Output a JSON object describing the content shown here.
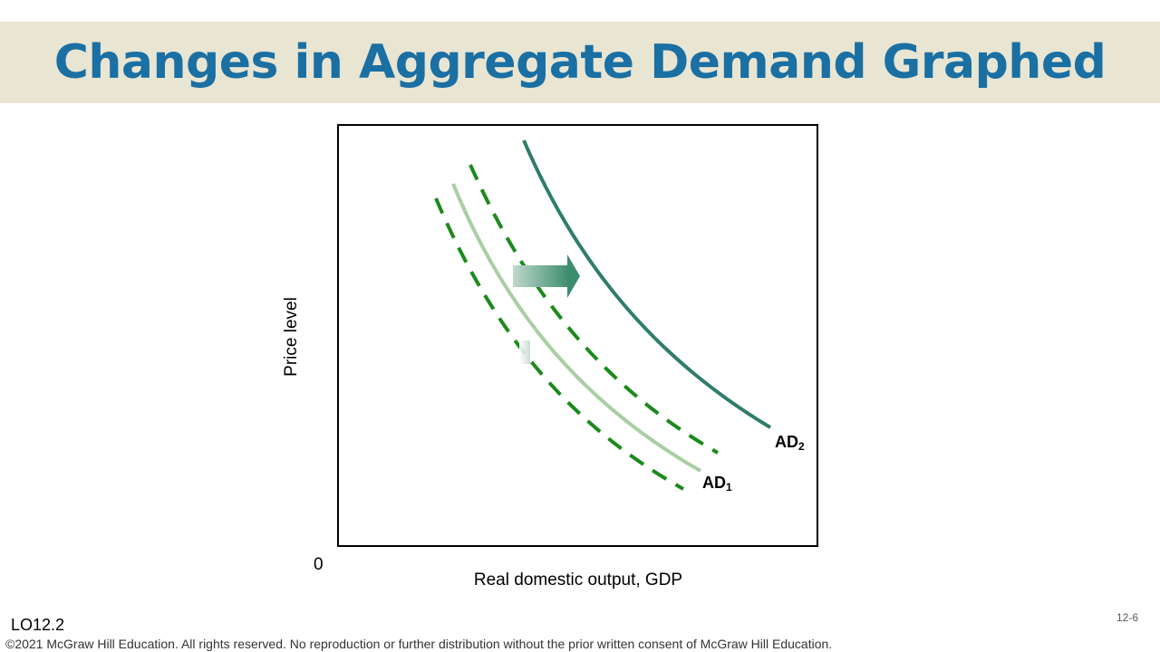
{
  "slide": {
    "title": "Changes in Aggregate Demand Graphed",
    "lo_code": "LO12.2",
    "slide_number": "12-6",
    "copyright": "©2021 McGraw Hill Education. All rights reserved. No reproduction or further distribution without the prior written consent of McGraw Hill Education."
  },
  "graph": {
    "y_axis_label": "Price level",
    "x_axis_label": "Real domestic output, GDP",
    "origin_label": "0",
    "curves": [
      {
        "name": "AD",
        "subscript": "1",
        "color": "#a8cfa2",
        "style": "solid"
      },
      {
        "name": "AD",
        "subscript": "2",
        "color": "#2e7d6a",
        "style": "solid"
      },
      {
        "name": "",
        "color": "#1b8a1b",
        "style": "dashed"
      },
      {
        "name": "",
        "color": "#1b8a1b",
        "style": "dashed"
      }
    ],
    "shift_arrow": {
      "direction": "right",
      "color": "#3d8c6f"
    }
  }
}
